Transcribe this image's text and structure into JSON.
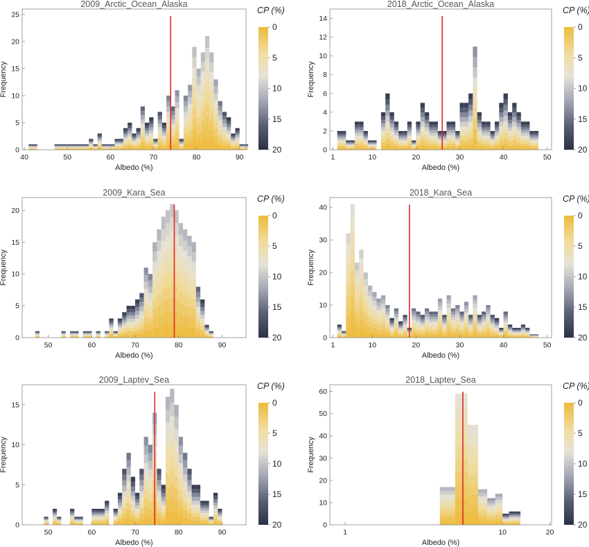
{
  "figure": {
    "colorbar_title": "CP (%)",
    "colorbar_ticks": [
      "0",
      "5",
      "10",
      "15",
      "20"
    ],
    "colorbar_range": [
      0,
      20
    ],
    "colors": {
      "cp_low": "#eebb3c",
      "cp_mid": "#e6e2d6",
      "cp_high": "#2a3147",
      "reference_line": "#e0262a",
      "frame": "#888888"
    }
  },
  "chart_data": [
    {
      "type": "bar",
      "title": "2009_Arctic_Ocean_Alaska",
      "xlabel": "Albedo (%)",
      "ylabel": "Frequency",
      "xlim": [
        39.5,
        91.5
      ],
      "ylim": [
        0,
        26
      ],
      "xticks": [
        40,
        50,
        60,
        70,
        80,
        90
      ],
      "yticks": [
        0,
        5,
        10,
        15,
        20,
        25
      ],
      "bin_width": 1,
      "bins_start": 41,
      "values": [
        1,
        1,
        0,
        0,
        0,
        0,
        1,
        1,
        1,
        1,
        1,
        1,
        1,
        1,
        2,
        1,
        3,
        1,
        1,
        1,
        2,
        2,
        4,
        5,
        3,
        4,
        8,
        5,
        6,
        2,
        7,
        5,
        10,
        8,
        11,
        2,
        10,
        12,
        19,
        15,
        18,
        21,
        18,
        13,
        9,
        7,
        6,
        3,
        4,
        1,
        1
      ],
      "reference_line_x": 74
    },
    {
      "type": "bar",
      "title": "2018_Arctic_Ocean_Alaska",
      "xlabel": "Albedo (%)",
      "ylabel": "Frequency",
      "xlim": [
        0.3,
        51
      ],
      "ylim": [
        0,
        15
      ],
      "xticks": [
        1,
        10,
        20,
        30,
        40,
        50
      ],
      "yticks": [
        0,
        2,
        4,
        6,
        8,
        10,
        12,
        14
      ],
      "bin_width": 1,
      "bins_start": 1,
      "values": [
        0,
        2,
        2,
        1,
        1,
        3,
        3,
        2,
        1,
        1,
        0,
        4,
        6,
        4,
        3,
        2,
        2,
        3,
        1,
        3,
        5,
        4,
        3,
        3,
        2,
        2,
        3,
        3,
        2,
        5,
        5,
        6,
        11,
        4,
        3,
        3,
        2,
        3,
        5,
        6,
        4,
        5,
        4,
        3,
        3,
        2,
        2,
        0
      ],
      "reference_line_x": 26
    },
    {
      "type": "bar",
      "title": "2009_Kara_Sea",
      "xlabel": "Albedo (%)",
      "ylabel": "Frequency",
      "xlim": [
        44,
        95.5
      ],
      "ylim": [
        0,
        22
      ],
      "xticks": [
        50,
        60,
        70,
        80,
        90
      ],
      "yticks": [
        0,
        5,
        10,
        15,
        20
      ],
      "bin_width": 1,
      "bins_start": 47,
      "values": [
        1,
        0,
        0,
        0,
        0,
        0,
        1,
        0,
        1,
        1,
        0,
        1,
        1,
        0,
        1,
        0,
        1,
        3,
        1,
        3,
        4,
        5,
        5,
        6,
        7,
        11,
        10,
        15,
        17,
        19,
        20,
        21,
        20,
        18,
        17,
        16,
        15,
        8,
        6,
        2,
        1
      ],
      "reference_line_x": 79
    },
    {
      "type": "bar",
      "title": "2018_Kara_Sea",
      "xlabel": "Albedo (%)",
      "ylabel": "Frequency",
      "xlim": [
        0.3,
        51
      ],
      "ylim": [
        0,
        43
      ],
      "xticks": [
        1,
        10,
        20,
        30,
        40,
        50
      ],
      "yticks": [
        0,
        10,
        20,
        30,
        40
      ],
      "bin_width": 1,
      "bins_start": 1,
      "values": [
        0,
        4,
        2,
        32,
        41,
        23,
        27,
        20,
        16,
        14,
        12,
        13,
        10,
        6,
        9,
        5,
        7,
        3,
        9,
        8,
        7,
        9,
        8,
        8,
        12,
        7,
        13,
        9,
        10,
        8,
        11,
        7,
        13,
        7,
        8,
        10,
        7,
        6,
        3,
        8,
        4,
        3,
        3,
        4,
        3,
        1,
        1,
        0
      ],
      "reference_line_x": 18.5
    },
    {
      "type": "bar",
      "title": "2009_Laptev_Sea",
      "xlabel": "Albedo (%)",
      "ylabel": "Frequency",
      "xlim": [
        44,
        95.5
      ],
      "ylim": [
        0,
        17.5
      ],
      "xticks": [
        50,
        60,
        70,
        80,
        90
      ],
      "yticks": [
        0,
        5,
        10,
        15
      ],
      "bin_width": 1,
      "bins_start": 47,
      "values": [
        0,
        0,
        1,
        0,
        2,
        1,
        0,
        0,
        2,
        1,
        1,
        0,
        0,
        2,
        2,
        2,
        3,
        0,
        2,
        4,
        7,
        9,
        6,
        4,
        7,
        11,
        10,
        14,
        7,
        5,
        16,
        17,
        15,
        11,
        9,
        7,
        5,
        5,
        3,
        3,
        1,
        4,
        2
      ],
      "reference_line_x": 74.5
    },
    {
      "type": "bar",
      "title": "2018_Laptev_Sea",
      "xlabel": "Albedo (%)",
      "ylabel": "Frequency",
      "xlim": [
        0.8,
        20.5
      ],
      "ylim": [
        0,
        63
      ],
      "xticks": [
        1,
        10,
        20
      ],
      "yticks": [
        0,
        10,
        20,
        30,
        40,
        50,
        60
      ],
      "bin_width": 1,
      "bins_start": 4,
      "values": [
        17,
        59,
        45,
        16,
        12,
        14,
        5,
        6,
        6
      ],
      "reference_line_x": 5.6
    }
  ]
}
